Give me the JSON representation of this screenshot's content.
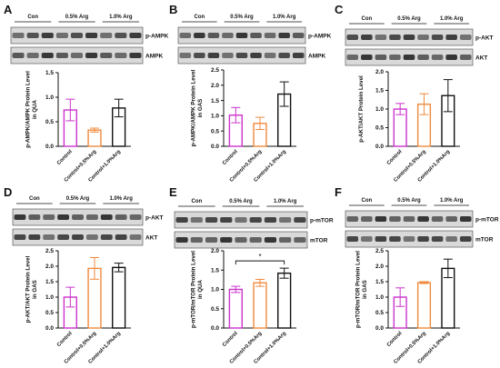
{
  "figure": {
    "colors": {
      "control": "#cc33cc",
      "arg05": "#f08a3c",
      "arg10": "#111111",
      "axis": "#111111"
    }
  },
  "chart_data": [
    {
      "id": "A",
      "type": "bar",
      "panel_letter": "A",
      "blot_groups": [
        "Con",
        "0.5% Arg",
        "1.0% Arg"
      ],
      "blot_bands": [
        "p-AMPK",
        "AMPK"
      ],
      "categories": [
        "Control",
        "Control+0.5%Arg",
        "Control+1.0%Arg"
      ],
      "values": [
        0.74,
        0.33,
        0.78
      ],
      "errors": [
        0.22,
        0.04,
        0.18
      ],
      "ylabel_lines": [
        "p-AMPK/AMPK Protein Level",
        "in QUA"
      ],
      "ylim": [
        0,
        1.5
      ],
      "yticks": [
        0,
        0.5,
        1.0,
        1.5
      ],
      "ytick_labels": [
        "0.0",
        "0.5",
        "1.0",
        "1.5"
      ],
      "significance": []
    },
    {
      "id": "B",
      "type": "bar",
      "panel_letter": "B",
      "blot_groups": [
        "Con",
        "0.5% Arg",
        "1.0% Arg"
      ],
      "blot_bands": [
        "p-AMPK",
        "AMPK"
      ],
      "categories": [
        "Control",
        "Control+0.5%Arg",
        "Control+1.0%Arg"
      ],
      "values": [
        1.02,
        0.75,
        1.71
      ],
      "errors": [
        0.25,
        0.2,
        0.4
      ],
      "ylabel_lines": [
        "p-AMPK/AMPK Protein Level",
        "in GAS"
      ],
      "ylim": [
        0,
        2.5
      ],
      "yticks": [
        0,
        0.5,
        1.0,
        1.5,
        2.0,
        2.5
      ],
      "ytick_labels": [
        "0.0",
        "0.5",
        "1.0",
        "1.5",
        "2.0",
        "2.5"
      ],
      "significance": []
    },
    {
      "id": "C",
      "type": "bar",
      "panel_letter": "C",
      "blot_groups": [
        "Con",
        "0.5% Arg",
        "1.0% Arg"
      ],
      "blot_bands": [
        "p-AKT",
        "AKT"
      ],
      "categories": [
        "Control",
        "Control+0.5%Arg",
        "Control+1.0%Arg"
      ],
      "values": [
        1.0,
        1.13,
        1.36
      ],
      "errors": [
        0.15,
        0.28,
        0.43
      ],
      "ylabel_lines": [
        "p-AKT/AKT Protein Level"
      ],
      "ylim": [
        0,
        2.0
      ],
      "yticks": [
        0,
        0.5,
        1.0,
        1.5,
        2.0
      ],
      "ytick_labels": [
        "0.0",
        "0.5",
        "1.0",
        "1.5",
        "2.0"
      ],
      "significance": []
    },
    {
      "id": "D",
      "type": "bar",
      "panel_letter": "D",
      "blot_groups": [
        "Con",
        "0.5% Arg",
        "1.0% Arg"
      ],
      "blot_bands": [
        "p-AKT",
        "AKT"
      ],
      "categories": [
        "Control",
        "Control+0.5%Arg",
        "Control+1.0%Arg"
      ],
      "values": [
        1.0,
        1.93,
        1.96
      ],
      "errors": [
        0.32,
        0.35,
        0.14
      ],
      "ylabel_lines": [
        "p-AKT/AKT Protein Level",
        "in GAS"
      ],
      "ylim": [
        0,
        2.5
      ],
      "yticks": [
        0,
        0.5,
        1.0,
        1.5,
        2.0,
        2.5
      ],
      "ytick_labels": [
        "0.0",
        "0.5",
        "1.0",
        "1.5",
        "2.0",
        "2.5"
      ],
      "significance": []
    },
    {
      "id": "E",
      "type": "bar",
      "panel_letter": "E",
      "blot_groups": [
        "Con",
        "0.5% Arg",
        "1.0% Arg"
      ],
      "blot_bands": [
        "p-mTOR",
        "mTOR"
      ],
      "categories": [
        "Control",
        "Control+0.5%Arg",
        "Control+1.0%Arg"
      ],
      "values": [
        1.0,
        1.17,
        1.42
      ],
      "errors": [
        0.08,
        0.09,
        0.13
      ],
      "ylabel_lines": [
        "p-mTOR/mTOR Protein Level",
        "in QUA"
      ],
      "ylim": [
        0,
        2.0
      ],
      "yticks": [
        0,
        0.5,
        1.0,
        1.5,
        2.0
      ],
      "ytick_labels": [
        "0.0",
        "0.5",
        "1.0",
        "1.5",
        "2.0"
      ],
      "significance": [
        {
          "from": 0,
          "to": 2,
          "label": "*"
        }
      ]
    },
    {
      "id": "F",
      "type": "bar",
      "panel_letter": "F",
      "blot_groups": [
        "Con",
        "0.5% Arg",
        "1.0% Arg"
      ],
      "blot_bands": [
        "p-mTOR",
        "mTOR"
      ],
      "categories": [
        "Control",
        "Control+0.5%Arg",
        "Control+1.0%Arg"
      ],
      "values": [
        1.0,
        1.47,
        1.93
      ],
      "errors": [
        0.3,
        0.03,
        0.3
      ],
      "ylabel_lines": [
        "p-mTOR/mTOR Protein Level",
        "in GAS"
      ],
      "ylim": [
        0,
        2.5
      ],
      "yticks": [
        0,
        0.5,
        1.0,
        1.5,
        2.0,
        2.5
      ],
      "ytick_labels": [
        "0.0",
        "0.5",
        "1.0",
        "1.5",
        "2.0",
        "2.5"
      ],
      "significance": []
    }
  ]
}
